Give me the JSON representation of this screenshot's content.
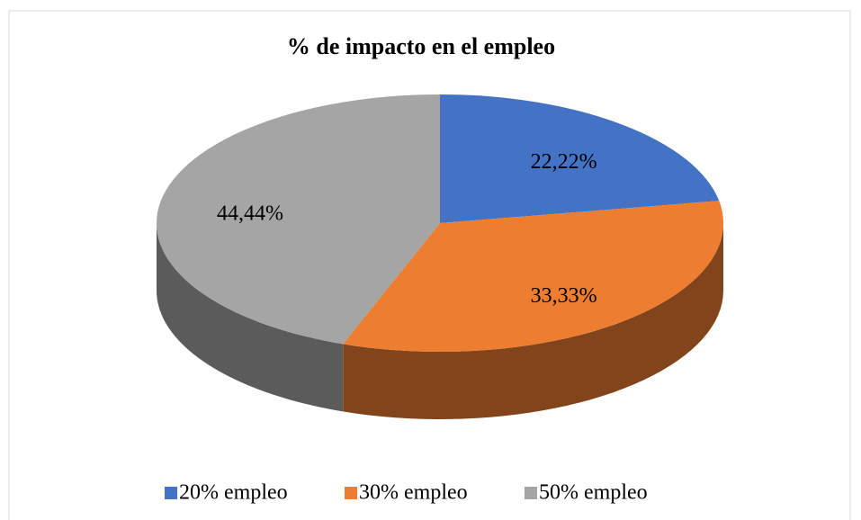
{
  "chart_data": {
    "type": "pie",
    "title": "% de impacto en el empleo",
    "categories": [
      "20% empleo",
      "30% empleo",
      "50% empleo"
    ],
    "values": [
      22.22,
      33.33,
      44.44
    ],
    "value_labels": [
      "22,22%",
      "33,33%",
      "44,44%"
    ],
    "colors": [
      "#4472c4",
      "#ed7d31",
      "#a5a5a5"
    ],
    "legend": "bottom"
  }
}
